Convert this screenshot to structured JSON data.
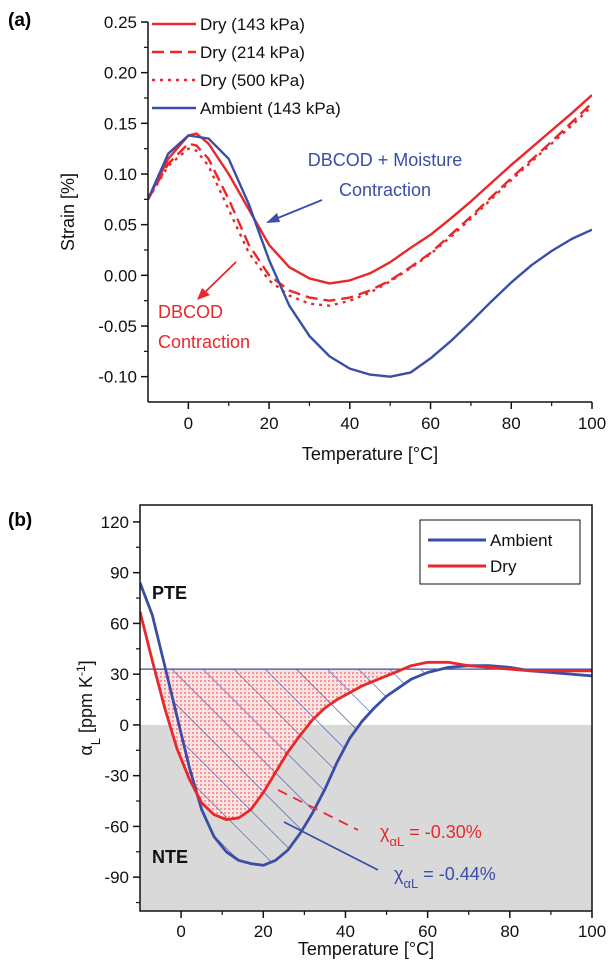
{
  "colors": {
    "red": "#e8282b",
    "blue": "#3a4ea8",
    "gray": "#d9d9d9"
  },
  "chart_data": [
    {
      "panel_label": "(a)",
      "type": "line",
      "xlabel": "Temperature [°C]",
      "ylabel": "Strain [%]",
      "xlim": [
        -10,
        100
      ],
      "ylim": [
        -0.125,
        0.25
      ],
      "xticks": [
        0,
        20,
        40,
        60,
        80,
        100
      ],
      "yticks": [
        0.25,
        0.2,
        0.15,
        0.1,
        0.05,
        0.0,
        -0.05,
        -0.1
      ],
      "ytick_labels": [
        "0.25",
        "0.20",
        "0.15",
        "0.10",
        "0.05",
        "0.00",
        "-0.05",
        "-0.10"
      ],
      "legend_position": "top",
      "series": [
        {
          "name": "Dry (143 kPa)",
          "color": "red",
          "dash": "solid",
          "x": [
            -10,
            -5,
            0,
            2,
            5,
            10,
            15,
            20,
            25,
            30,
            35,
            40,
            45,
            50,
            55,
            60,
            65,
            70,
            75,
            80,
            85,
            90,
            95,
            100
          ],
          "y": [
            0.075,
            0.115,
            0.138,
            0.14,
            0.13,
            0.1,
            0.065,
            0.03,
            0.008,
            -0.003,
            -0.008,
            -0.005,
            0.002,
            0.013,
            0.027,
            0.04,
            0.056,
            0.073,
            0.091,
            0.109,
            0.126,
            0.143,
            0.16,
            0.178
          ]
        },
        {
          "name": "Dry (214 kPa)",
          "color": "red",
          "dash": "dash",
          "x": [
            -10,
            -5,
            0,
            2,
            5,
            10,
            15,
            20,
            25,
            30,
            35,
            40,
            45,
            50,
            55,
            60,
            65,
            70,
            75,
            80,
            85,
            90,
            95,
            100
          ],
          "y": [
            0.075,
            0.11,
            0.13,
            0.128,
            0.115,
            0.075,
            0.03,
            0.0,
            -0.015,
            -0.022,
            -0.025,
            -0.022,
            -0.015,
            -0.005,
            0.008,
            0.022,
            0.04,
            0.058,
            0.077,
            0.096,
            0.114,
            0.132,
            0.151,
            0.17
          ]
        },
        {
          "name": "Dry (500 kPa)",
          "color": "red",
          "dash": "dot",
          "x": [
            -10,
            -5,
            0,
            2,
            5,
            10,
            15,
            20,
            25,
            30,
            35,
            40,
            45,
            50,
            55,
            60,
            65,
            70,
            75,
            80,
            85,
            90,
            95,
            100
          ],
          "y": [
            0.075,
            0.108,
            0.125,
            0.123,
            0.108,
            0.065,
            0.022,
            -0.005,
            -0.02,
            -0.028,
            -0.03,
            -0.025,
            -0.017,
            -0.006,
            0.007,
            0.021,
            0.038,
            0.056,
            0.075,
            0.094,
            0.112,
            0.13,
            0.148,
            0.167
          ]
        },
        {
          "name": "Ambient (143 kPa)",
          "color": "blue",
          "dash": "solid",
          "x": [
            -10,
            -5,
            0,
            5,
            10,
            15,
            20,
            25,
            30,
            35,
            40,
            45,
            50,
            55,
            60,
            65,
            70,
            75,
            80,
            85,
            90,
            95,
            100
          ],
          "y": [
            0.075,
            0.12,
            0.138,
            0.135,
            0.115,
            0.07,
            0.015,
            -0.03,
            -0.06,
            -0.08,
            -0.092,
            -0.098,
            -0.1,
            -0.096,
            -0.082,
            -0.065,
            -0.046,
            -0.026,
            -0.007,
            0.01,
            0.024,
            0.036,
            0.045
          ]
        }
      ],
      "annotations": [
        {
          "text": "DBCOD + Moisture",
          "color": "blue"
        },
        {
          "text": "Contraction",
          "color": "blue"
        },
        {
          "text": "DBCOD",
          "color": "red"
        },
        {
          "text": "Contraction",
          "color": "red"
        }
      ]
    },
    {
      "panel_label": "(b)",
      "type": "line",
      "xlabel": "Temperature [°C]",
      "ylabel": "α",
      "ylabel_sub": "L",
      "ylabel_unit": " [ppm K",
      "ylabel_sup": "-1",
      "ylabel_end": "]",
      "xlim": [
        -10,
        100
      ],
      "ylim": [
        -110,
        130
      ],
      "xticks": [
        0,
        20,
        40,
        60,
        80,
        100
      ],
      "yticks": [
        120,
        90,
        60,
        30,
        0,
        -30,
        -60,
        -90
      ],
      "legend_position": "top-right",
      "reference_line": 33,
      "series": [
        {
          "name": "Ambient",
          "color": "blue",
          "x": [
            -10,
            -7,
            -4,
            -1,
            2,
            5,
            8,
            11,
            14,
            17,
            20,
            23,
            26,
            29,
            32,
            35,
            38,
            41,
            44,
            47,
            50,
            53,
            56,
            60,
            65,
            70,
            75,
            80,
            85,
            90,
            95,
            100
          ],
          "y": [
            84,
            65,
            35,
            5,
            -25,
            -50,
            -66,
            -75,
            -80,
            -82,
            -83,
            -80,
            -74,
            -64,
            -52,
            -38,
            -22,
            -8,
            2,
            10,
            17,
            22,
            27,
            31,
            34,
            35,
            35,
            34,
            32,
            31,
            30,
            29
          ]
        },
        {
          "name": "Dry",
          "color": "red",
          "x": [
            -10,
            -7,
            -4,
            -1,
            2,
            5,
            8,
            11,
            14,
            17,
            20,
            23,
            26,
            29,
            32,
            35,
            38,
            41,
            44,
            47,
            50,
            53,
            56,
            60,
            65,
            70,
            75,
            80,
            85,
            90,
            95,
            100
          ],
          "y": [
            67,
            38,
            10,
            -14,
            -32,
            -46,
            -53,
            -56,
            -55,
            -50,
            -40,
            -28,
            -16,
            -6,
            3,
            10,
            15,
            19,
            23,
            26,
            29,
            32,
            35,
            37,
            37,
            35,
            34,
            33,
            32,
            32,
            32,
            32
          ]
        }
      ],
      "annotations": [
        {
          "text": "PTE"
        },
        {
          "text": "NTE"
        },
        {
          "symbol": "χ",
          "sub": "αL",
          "value": " = -0.30%",
          "color": "red"
        },
        {
          "symbol": "χ",
          "sub": "αL",
          "value": " = -0.44%",
          "color": "blue"
        }
      ]
    }
  ]
}
